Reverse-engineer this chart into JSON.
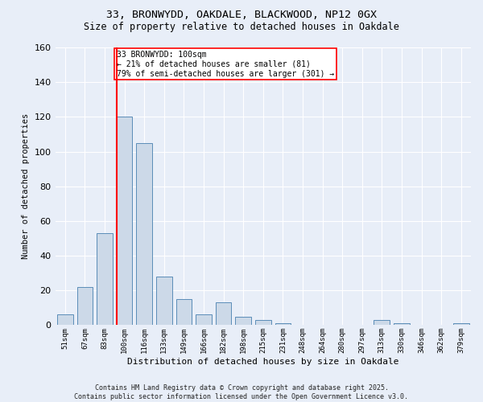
{
  "title1": "33, BRONWYDD, OAKDALE, BLACKWOOD, NP12 0GX",
  "title2": "Size of property relative to detached houses in Oakdale",
  "xlabel": "Distribution of detached houses by size in Oakdale",
  "ylabel": "Number of detached properties",
  "categories": [
    "51sqm",
    "67sqm",
    "83sqm",
    "100sqm",
    "116sqm",
    "133sqm",
    "149sqm",
    "166sqm",
    "182sqm",
    "198sqm",
    "215sqm",
    "231sqm",
    "248sqm",
    "264sqm",
    "280sqm",
    "297sqm",
    "313sqm",
    "330sqm",
    "346sqm",
    "362sqm",
    "379sqm"
  ],
  "values": [
    6,
    22,
    53,
    120,
    105,
    28,
    15,
    6,
    13,
    5,
    3,
    1,
    0,
    0,
    0,
    0,
    3,
    1,
    0,
    0,
    1
  ],
  "bar_color": "#ccd9e8",
  "bar_edge_color": "#5b8db8",
  "red_line_index": 3,
  "annotation_text": "33 BRONWYDD: 100sqm\n← 21% of detached houses are smaller (81)\n79% of semi-detached houses are larger (301) →",
  "annotation_box_color": "white",
  "annotation_box_edge": "red",
  "ylim": [
    0,
    160
  ],
  "yticks": [
    0,
    20,
    40,
    60,
    80,
    100,
    120,
    140,
    160
  ],
  "footer": "Contains HM Land Registry data © Crown copyright and database right 2025.\nContains public sector information licensed under the Open Government Licence v3.0.",
  "bg_color": "#e8eef8",
  "grid_color": "white"
}
